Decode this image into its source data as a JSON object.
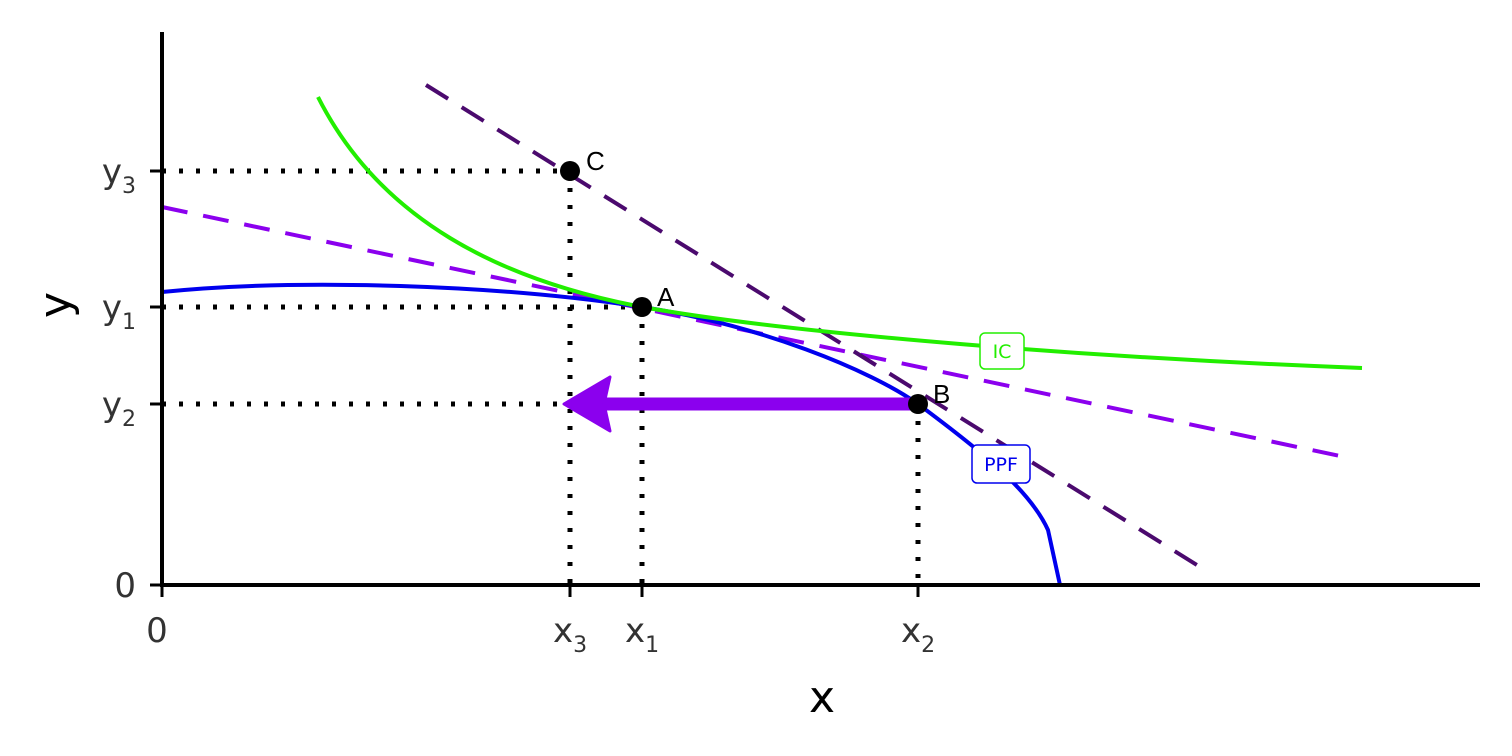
{
  "axes": {
    "x_title": "x",
    "y_title": "y"
  },
  "x_ticks": [
    {
      "main": "0"
    },
    {
      "main": "x",
      "sub": "3"
    },
    {
      "main": "x",
      "sub": "1"
    },
    {
      "main": "x",
      "sub": "2"
    }
  ],
  "y_ticks": [
    {
      "main": "0"
    },
    {
      "main": "y",
      "sub": "2"
    },
    {
      "main": "y",
      "sub": "1"
    },
    {
      "main": "y",
      "sub": "3"
    }
  ],
  "points": [
    {
      "label": "A"
    },
    {
      "label": "B"
    },
    {
      "label": "C"
    }
  ],
  "curve_labels": {
    "ic": "IC",
    "ppf": "PPF"
  }
}
